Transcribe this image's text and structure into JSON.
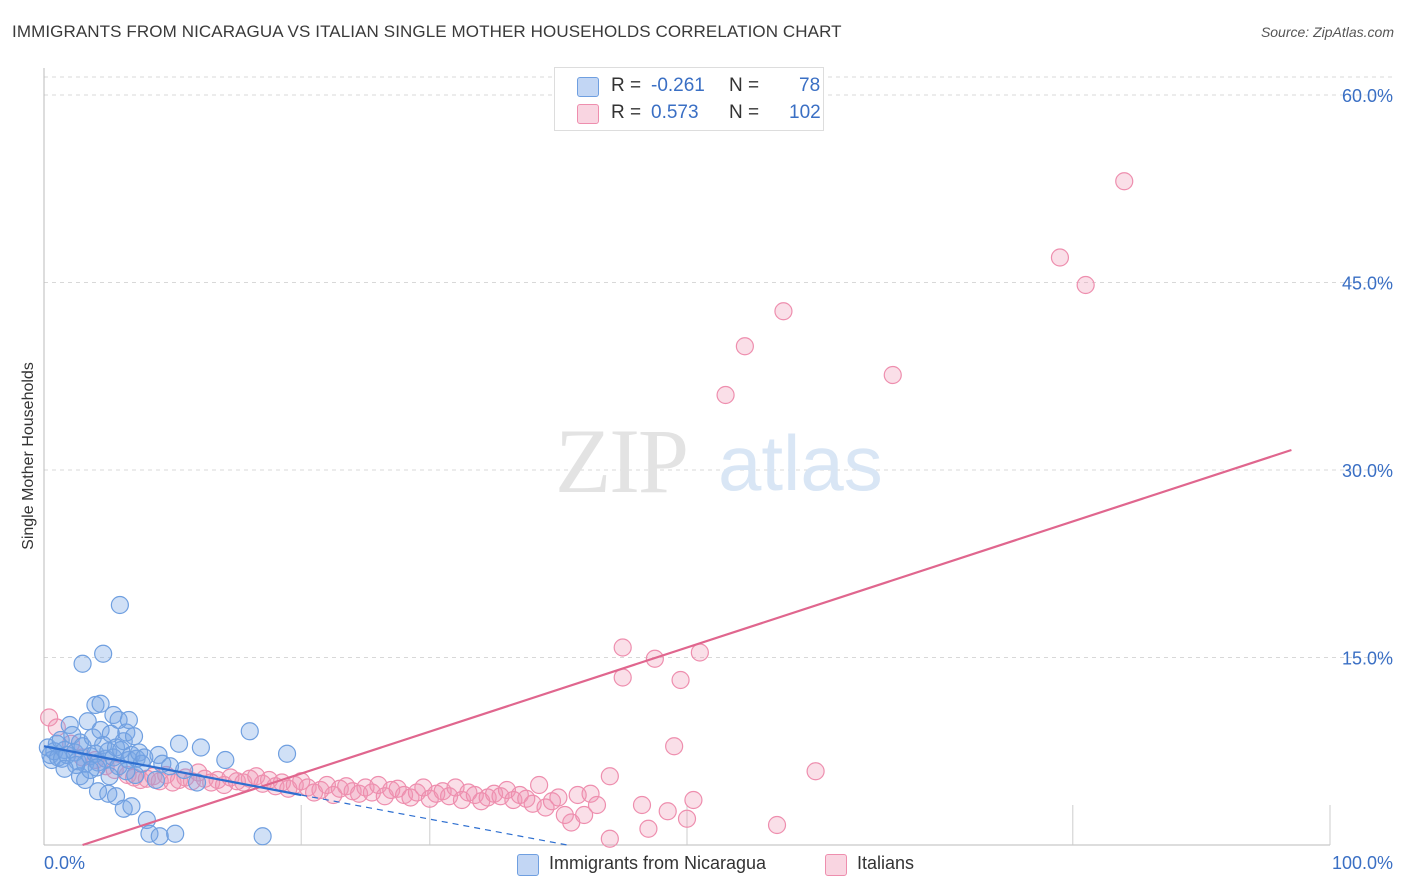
{
  "title": "IMMIGRANTS FROM NICARAGUA VS ITALIAN SINGLE MOTHER HOUSEHOLDS CORRELATION CHART",
  "source": "Source: ZipAtlas.com",
  "watermark": {
    "zip": "ZIP",
    "atlas": "atlas"
  },
  "legend_top": {
    "rows": [
      {
        "r_label": "R =",
        "r_value": "-0.261",
        "n_label": "N =",
        "n_value": "78",
        "color": "#a8c8f0"
      },
      {
        "r_label": "R =",
        "r_value": "0.573",
        "n_label": "N =",
        "n_value": "102",
        "color": "#f5b8cc"
      }
    ]
  },
  "legend_bottom": {
    "items": [
      {
        "label": "Immigrants from Nicaragua",
        "color": "#a8c8f0"
      },
      {
        "label": "Italians",
        "color": "#f5b8cc"
      }
    ]
  },
  "colors": {
    "blue_fill": "rgba(120,165,230,0.35)",
    "blue_stroke": "#6f9fe0",
    "blue_line": "#2e6fd0",
    "pink_fill": "rgba(240,150,180,0.30)",
    "pink_stroke": "#ee8eae",
    "pink_line": "#e0668e",
    "axis_text": "#3a6fc4",
    "grid": "#d8d8d8"
  },
  "chart_data": {
    "type": "scatter",
    "title": "IMMIGRANTS FROM NICARAGUA VS ITALIAN SINGLE MOTHER HOUSEHOLDS CORRELATION CHART",
    "xlabel": "",
    "ylabel": "Single Mother Households",
    "xlim": [
      0,
      100
    ],
    "ylim": [
      0,
      60
    ],
    "x_tick_labels": [
      "0.0%",
      "100.0%"
    ],
    "y_ticks": [
      15,
      30,
      45,
      60
    ],
    "y_tick_labels": [
      "15.0%",
      "30.0%",
      "45.0%",
      "60.0%"
    ],
    "grid": true,
    "legend_position": "bottom",
    "series": [
      {
        "name": "Immigrants from Nicaragua",
        "trend": {
          "x": [
            0,
            20
          ],
          "y": [
            7.9,
            4.0
          ],
          "dashed_to": [
            50,
            -1.8
          ]
        },
        "points": [
          [
            0.3,
            7.8
          ],
          [
            0.5,
            7.2
          ],
          [
            0.6,
            6.8
          ],
          [
            0.8,
            7.5
          ],
          [
            1.0,
            8.1
          ],
          [
            1.1,
            7.0
          ],
          [
            1.3,
            8.4
          ],
          [
            1.4,
            6.9
          ],
          [
            1.6,
            7.6
          ],
          [
            1.8,
            7.2
          ],
          [
            2.0,
            9.6
          ],
          [
            2.2,
            8.8
          ],
          [
            2.4,
            7.4
          ],
          [
            2.6,
            6.7
          ],
          [
            2.8,
            8.2
          ],
          [
            3.0,
            7.9
          ],
          [
            3.2,
            6.5
          ],
          [
            3.4,
            9.9
          ],
          [
            3.6,
            7.1
          ],
          [
            3.8,
            8.6
          ],
          [
            4.0,
            7.3
          ],
          [
            4.2,
            6.6
          ],
          [
            4.4,
            9.2
          ],
          [
            4.6,
            8.0
          ],
          [
            4.8,
            6.9
          ],
          [
            5.0,
            7.5
          ],
          [
            5.2,
            8.9
          ],
          [
            5.4,
            7.0
          ],
          [
            5.6,
            7.8
          ],
          [
            5.8,
            6.3
          ],
          [
            6.0,
            7.6
          ],
          [
            6.2,
            8.3
          ],
          [
            6.4,
            9.0
          ],
          [
            6.6,
            6.8
          ],
          [
            6.8,
            7.2
          ],
          [
            7.0,
            8.7
          ],
          [
            7.2,
            6.9
          ],
          [
            7.4,
            7.4
          ],
          [
            7.6,
            6.5
          ],
          [
            7.8,
            7.0
          ],
          [
            2.8,
            5.5
          ],
          [
            3.2,
            5.2
          ],
          [
            4.2,
            4.3
          ],
          [
            5.0,
            4.1
          ],
          [
            5.6,
            3.9
          ],
          [
            6.2,
            2.9
          ],
          [
            6.8,
            3.1
          ],
          [
            8.0,
            2.0
          ],
          [
            8.2,
            0.9
          ],
          [
            9.0,
            0.7
          ],
          [
            10.2,
            0.9
          ],
          [
            17.0,
            0.7
          ],
          [
            3.0,
            14.5
          ],
          [
            4.6,
            15.3
          ],
          [
            5.9,
            19.2
          ],
          [
            4.0,
            11.2
          ],
          [
            4.4,
            11.3
          ],
          [
            5.4,
            10.4
          ],
          [
            5.8,
            10.0
          ],
          [
            6.6,
            10.0
          ],
          [
            8.9,
            7.2
          ],
          [
            9.2,
            6.5
          ],
          [
            10.5,
            8.1
          ],
          [
            12.2,
            7.8
          ],
          [
            14.1,
            6.8
          ],
          [
            18.9,
            7.3
          ],
          [
            16.0,
            9.1
          ],
          [
            11.9,
            5.0
          ],
          [
            8.7,
            5.2
          ],
          [
            7.1,
            5.6
          ],
          [
            9.8,
            6.3
          ],
          [
            10.9,
            6.0
          ],
          [
            6.4,
            5.9
          ],
          [
            5.1,
            5.5
          ],
          [
            4.1,
            6.2
          ],
          [
            3.6,
            6.0
          ],
          [
            2.5,
            6.4
          ],
          [
            1.6,
            6.1
          ]
        ]
      },
      {
        "name": "Italians",
        "trend": {
          "x": [
            3,
            97
          ],
          "y": [
            0,
            31.6
          ]
        },
        "points": [
          [
            0.4,
            10.2
          ],
          [
            1.0,
            9.4
          ],
          [
            2.1,
            8.1
          ],
          [
            3.0,
            7.0
          ],
          [
            4.0,
            6.8
          ],
          [
            4.8,
            6.3
          ],
          [
            5.5,
            6.0
          ],
          [
            6.5,
            5.6
          ],
          [
            7.0,
            5.4
          ],
          [
            7.5,
            5.2
          ],
          [
            8.0,
            5.3
          ],
          [
            8.5,
            5.5
          ],
          [
            9.0,
            5.1
          ],
          [
            9.5,
            5.6
          ],
          [
            10.0,
            5.0
          ],
          [
            10.5,
            5.2
          ],
          [
            11.0,
            5.4
          ],
          [
            11.5,
            5.1
          ],
          [
            12.0,
            5.8
          ],
          [
            12.5,
            5.3
          ],
          [
            13.0,
            5.0
          ],
          [
            13.5,
            5.2
          ],
          [
            14.0,
            4.8
          ],
          [
            14.5,
            5.4
          ],
          [
            15.0,
            5.1
          ],
          [
            15.5,
            5.0
          ],
          [
            16.0,
            5.3
          ],
          [
            16.5,
            5.5
          ],
          [
            17.0,
            4.9
          ],
          [
            17.5,
            5.2
          ],
          [
            18.0,
            4.7
          ],
          [
            18.5,
            5.0
          ],
          [
            19.0,
            4.5
          ],
          [
            19.5,
            4.8
          ],
          [
            20.0,
            5.1
          ],
          [
            20.5,
            4.6
          ],
          [
            21.0,
            4.2
          ],
          [
            21.5,
            4.4
          ],
          [
            22.0,
            4.8
          ],
          [
            22.5,
            4.0
          ],
          [
            23.0,
            4.5
          ],
          [
            23.5,
            4.7
          ],
          [
            24.0,
            4.3
          ],
          [
            24.5,
            4.1
          ],
          [
            25.0,
            4.6
          ],
          [
            25.5,
            4.2
          ],
          [
            26.0,
            4.8
          ],
          [
            26.5,
            3.9
          ],
          [
            27.0,
            4.4
          ],
          [
            27.5,
            4.5
          ],
          [
            28.0,
            4.0
          ],
          [
            28.5,
            3.8
          ],
          [
            29.0,
            4.2
          ],
          [
            29.5,
            4.6
          ],
          [
            30.0,
            3.7
          ],
          [
            30.5,
            4.1
          ],
          [
            31.0,
            4.3
          ],
          [
            31.5,
            3.9
          ],
          [
            32.0,
            4.6
          ],
          [
            32.5,
            3.6
          ],
          [
            33.0,
            4.2
          ],
          [
            33.5,
            4.0
          ],
          [
            34.0,
            3.5
          ],
          [
            34.5,
            3.8
          ],
          [
            35.0,
            4.1
          ],
          [
            35.5,
            3.9
          ],
          [
            36.0,
            4.4
          ],
          [
            36.5,
            3.6
          ],
          [
            37.0,
            4.0
          ],
          [
            37.5,
            3.7
          ],
          [
            38.0,
            3.3
          ],
          [
            38.5,
            4.8
          ],
          [
            39.0,
            3.0
          ],
          [
            39.5,
            3.5
          ],
          [
            40.0,
            3.8
          ],
          [
            40.5,
            2.4
          ],
          [
            41.0,
            1.8
          ],
          [
            41.5,
            4.0
          ],
          [
            42.0,
            2.4
          ],
          [
            42.5,
            4.1
          ],
          [
            43.0,
            3.2
          ],
          [
            44.0,
            0.5
          ],
          [
            44.0,
            5.5
          ],
          [
            45.0,
            13.4
          ],
          [
            45.0,
            15.8
          ],
          [
            46.5,
            3.2
          ],
          [
            47.0,
            1.3
          ],
          [
            47.5,
            14.9
          ],
          [
            48.5,
            2.7
          ],
          [
            49.0,
            7.9
          ],
          [
            49.5,
            13.2
          ],
          [
            50.0,
            2.1
          ],
          [
            50.5,
            3.6
          ],
          [
            51.0,
            15.4
          ],
          [
            53.0,
            36.0
          ],
          [
            54.5,
            39.9
          ],
          [
            57.0,
            1.6
          ],
          [
            57.5,
            42.7
          ],
          [
            60.0,
            5.9
          ],
          [
            66.0,
            37.6
          ],
          [
            79.0,
            47.0
          ],
          [
            81.0,
            44.8
          ],
          [
            84.0,
            53.1
          ]
        ]
      }
    ]
  }
}
